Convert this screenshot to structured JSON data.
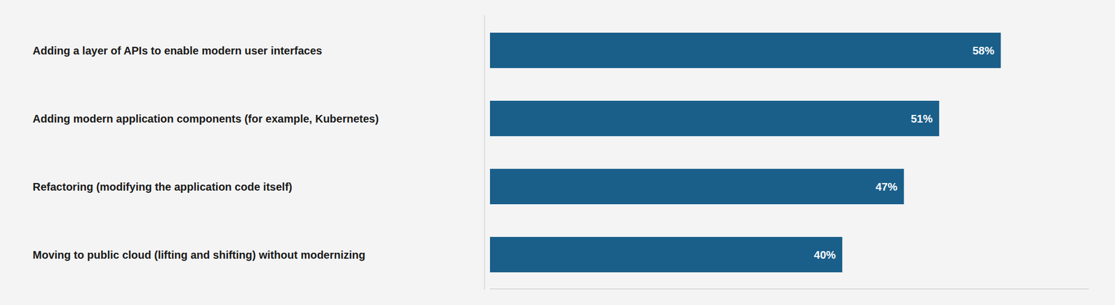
{
  "chart_data": {
    "type": "bar",
    "orientation": "horizontal",
    "categories": [
      "Adding a layer of APIs to enable modern user interfaces",
      "Adding modern application components (for example, Kubernetes)",
      "Refactoring (modifying the application code itself)",
      "Moving to public cloud (lifting and shifting) without modernizing"
    ],
    "values": [
      58,
      51,
      47,
      40
    ],
    "value_labels": [
      "58%",
      "51%",
      "47%",
      "40%"
    ],
    "color": "#1a5f8a",
    "xlim": [
      0,
      68
    ],
    "data_labels": true,
    "tick_labels": "y",
    "grid": false
  }
}
